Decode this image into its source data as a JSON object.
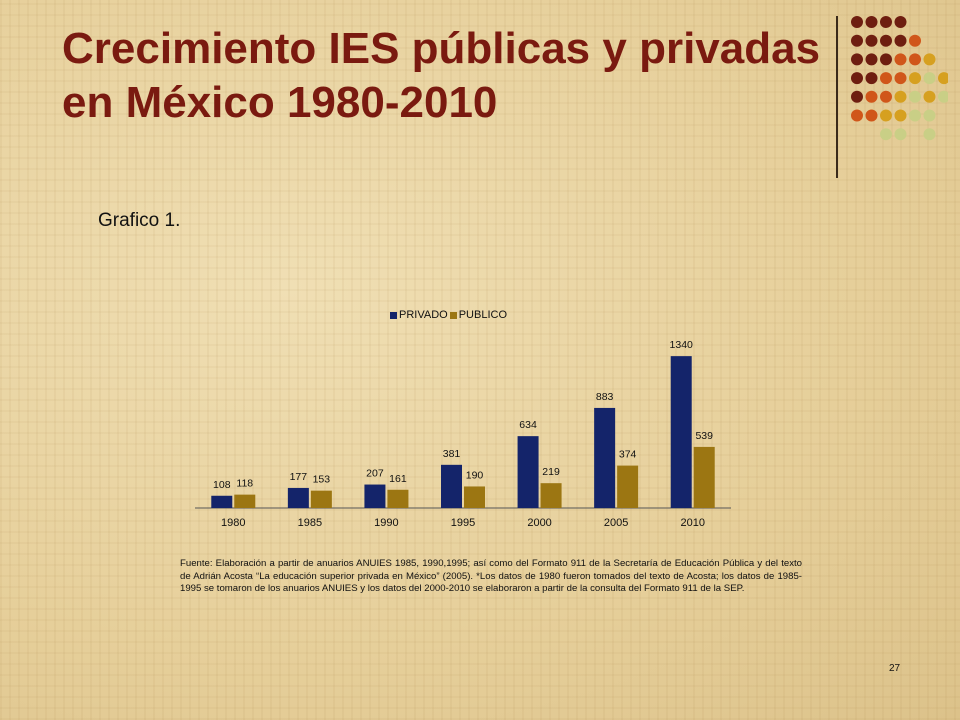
{
  "title": "Crecimiento IES públicas y privadas  en México 1980-2010",
  "subtitle": "Grafico 1.",
  "source_note": "Fuente: Elaboración a partir de anuarios ANUIES 1985, 1990,1995; así como del Formato 911 de la Secretaría de Educación Pública y del texto de Adrián Acosta “La educación superior privada en México” (2005). *Los datos de 1980 fueron tomados del texto de Acosta; los datos de 1985-1995 se tomaron de los anuarios ANUIES y los datos del 2000-2010 se elaboraron a partir de la consulta del Formato 911 de la SEP.",
  "page_number": "27",
  "colors": {
    "title": "#7a1a10",
    "privado": "#14246a",
    "publico": "#9c7612",
    "dot_dark": "#6e1e10",
    "dot_orange": "#d0561a",
    "dot_gold": "#d6a020",
    "dot_green": "#c9cf86"
  },
  "decor": {
    "dot_pattern": [
      "dddd   ",
      "ddddo  ",
      "dddoog ",
      "ddoogeg",
      "doogege",
      "ooggee ",
      "  ee e "
    ]
  },
  "chart_data": {
    "type": "bar",
    "categories": [
      "1980",
      "1985",
      "1990",
      "1995",
      "2000",
      "2005",
      "2010"
    ],
    "series": [
      {
        "name": "PRIVADO",
        "values": [
          108,
          177,
          207,
          381,
          634,
          883,
          1340
        ],
        "color": "#14246a"
      },
      {
        "name": "PUBLICO",
        "values": [
          118,
          153,
          161,
          190,
          219,
          374,
          539
        ],
        "color": "#9c7612"
      }
    ],
    "ylim": [
      0,
      1500
    ],
    "grid": false,
    "legend_position": "top",
    "data_labels": true
  }
}
